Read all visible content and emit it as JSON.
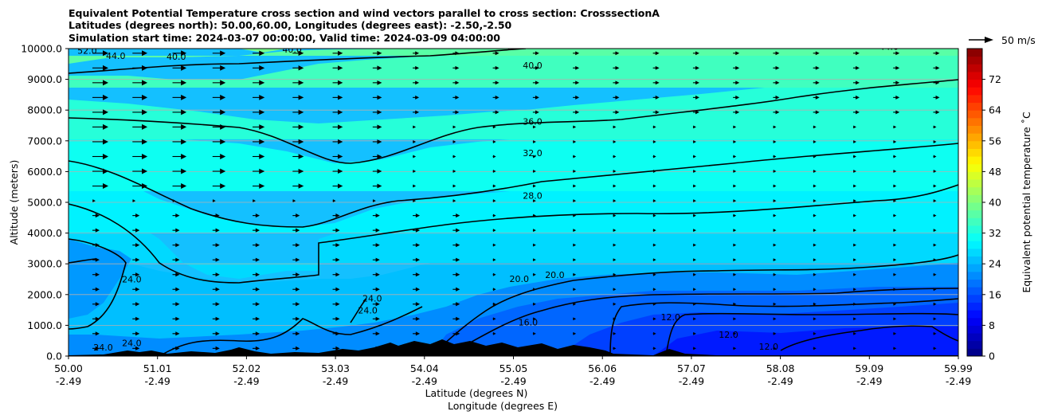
{
  "chart_data": {
    "type": "heatmap",
    "title_lines": [
      "Equivalent Potential Temperature cross section and wind vectors parallel to cross section: CrosssectionA",
      "Latitudes (degrees north): 50.00,60.00, Longitudes (degrees east): -2.50,-2.50",
      "Simulation start time: 2024-03-07 00:00:00, Valid time: 2024-03-09 04:00:00"
    ],
    "xlabel": "Latitude (degrees N)",
    "xlabel2": "Longitude (degrees E)",
    "ylabel": "Altitude (meters)",
    "xlim": [
      50.0,
      59.99
    ],
    "ylim": [
      0,
      10000
    ],
    "x_ticks": [
      {
        "lat": "50.00",
        "lon": "-2.49"
      },
      {
        "lat": "51.01",
        "lon": "-2.49"
      },
      {
        "lat": "52.02",
        "lon": "-2.49"
      },
      {
        "lat": "53.03",
        "lon": "-2.49"
      },
      {
        "lat": "54.04",
        "lon": "-2.49"
      },
      {
        "lat": "55.05",
        "lon": "-2.49"
      },
      {
        "lat": "56.06",
        "lon": "-2.49"
      },
      {
        "lat": "57.07",
        "lon": "-2.49"
      },
      {
        "lat": "58.08",
        "lon": "-2.49"
      },
      {
        "lat": "59.09",
        "lon": "-2.49"
      },
      {
        "lat": "59.99",
        "lon": "-2.49"
      }
    ],
    "y_ticks": [
      "0.0",
      "1000.0",
      "2000.0",
      "3000.0",
      "4000.0",
      "5000.0",
      "6000.0",
      "7000.0",
      "8000.0",
      "9000.0",
      "10000.0"
    ],
    "y_tick_values": [
      0,
      1000,
      2000,
      3000,
      4000,
      5000,
      6000,
      7000,
      8000,
      9000,
      10000
    ],
    "grid": "horizontal",
    "colorbar": {
      "label": "Equivalent potential temperature $^\\circ$C",
      "label_text": "Equivalent potential temperature ˚C",
      "ticks": [
        "0",
        "8",
        "16",
        "24",
        "32",
        "40",
        "48",
        "56",
        "64",
        "72"
      ],
      "tick_values": [
        0,
        8,
        16,
        24,
        32,
        40,
        48,
        56,
        64,
        72
      ],
      "range": [
        0,
        80
      ],
      "colormap": "jet",
      "levels": 40
    },
    "quiver_key": "50 m/s",
    "contour_labels": [
      {
        "text": "52.0",
        "lat": 50.1,
        "alt": 9830
      },
      {
        "text": "44.0",
        "lat": 50.42,
        "alt": 9660
      },
      {
        "text": "40.0",
        "lat": 51.1,
        "alt": 9640
      },
      {
        "text": "40.0",
        "lat": 52.4,
        "alt": 9870
      },
      {
        "text": "44.0",
        "lat": 54.9,
        "alt": 9980
      },
      {
        "text": "40.0",
        "lat": 55.1,
        "alt": 9350
      },
      {
        "text": "44.0",
        "lat": 59.1,
        "alt": 9960
      },
      {
        "text": "36.0",
        "lat": 55.1,
        "alt": 7530
      },
      {
        "text": "32.0",
        "lat": 55.1,
        "alt": 6500
      },
      {
        "text": "28.0",
        "lat": 55.1,
        "alt": 5120
      },
      {
        "text": "24.0",
        "lat": 50.6,
        "alt": 2400
      },
      {
        "text": "24.0",
        "lat": 53.3,
        "alt": 1780
      },
      {
        "text": "24.0",
        "lat": 53.25,
        "alt": 1380
      },
      {
        "text": "24.0",
        "lat": 50.6,
        "alt": 330
      },
      {
        "text": "24.0",
        "lat": 50.28,
        "alt": 180
      },
      {
        "text": "20.0",
        "lat": 54.95,
        "alt": 2410
      },
      {
        "text": "20.0",
        "lat": 55.35,
        "alt": 2540
      },
      {
        "text": "16.0",
        "lat": 55.05,
        "alt": 1000
      },
      {
        "text": "12.0",
        "lat": 56.65,
        "alt": 1160
      },
      {
        "text": "12.0",
        "lat": 57.3,
        "alt": 600
      },
      {
        "text": "12.0",
        "lat": 57.75,
        "alt": 210
      }
    ]
  }
}
